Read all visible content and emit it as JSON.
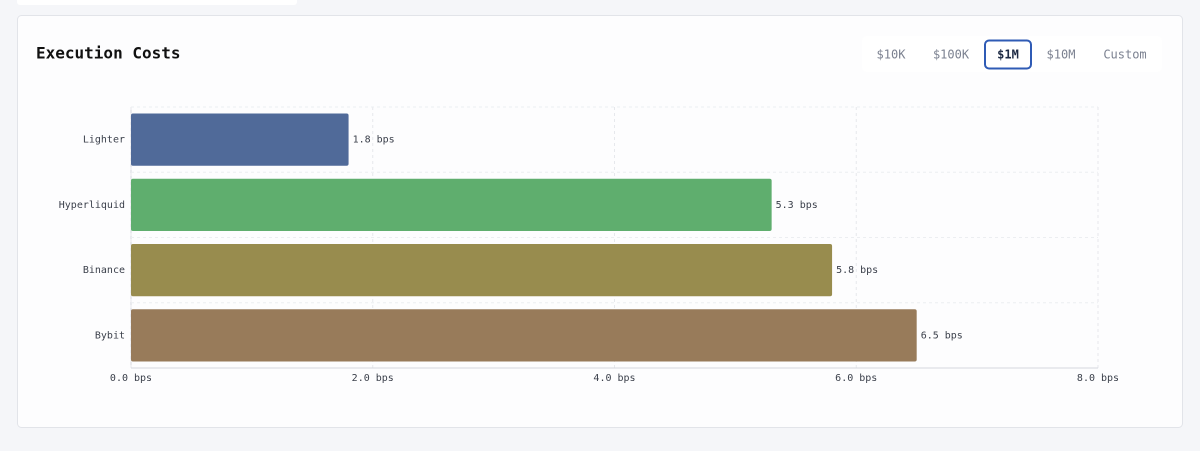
{
  "buttons": [
    "$10K",
    "$100K",
    "$1M",
    "$10M",
    "Custom"
  ],
  "selected_button": 2,
  "chart_data": {
    "type": "hbar",
    "title": "Execution Costs",
    "categories": [
      "Lighter",
      "Hyperliquid",
      "Binance",
      "Bybit"
    ],
    "values": [
      1.8,
      5.3,
      5.8,
      6.5
    ],
    "value_labels": [
      "1.8 bps",
      "5.3 bps",
      "5.8 bps",
      "6.5 bps"
    ],
    "colors": [
      "#506a99",
      "#5fae6e",
      "#988c4e",
      "#987b5a"
    ],
    "xlim": [
      0,
      8
    ],
    "xticks": [
      {
        "value": 0,
        "label": "0.0 bps"
      },
      {
        "value": 2,
        "label": "2.0 bps"
      },
      {
        "value": 4,
        "label": "4.0 bps"
      },
      {
        "value": 6,
        "label": "6.0 bps"
      },
      {
        "value": 8,
        "label": "8.0 bps"
      }
    ],
    "grid": true
  }
}
